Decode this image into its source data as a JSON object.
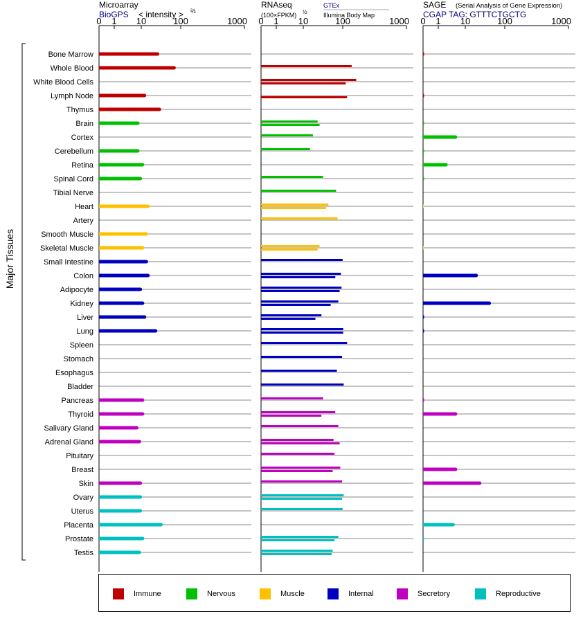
{
  "header": {
    "microarray_title": "Microarray",
    "microarray_source": "BioGPS",
    "microarray_unit_prefix": "< intensity >",
    "microarray_unit_exponent": "⅔",
    "rnaseq_title": "RNAseq",
    "rnaseq_unit": "(100×FPKM)",
    "rnaseq_unit_exponent": "½",
    "rnaseq_source_1": "GTEx",
    "rnaseq_source_2": "Illumina Body Map",
    "sage_title": "SAGE",
    "sage_subtitle": "(Serial Analysis of Gene Expression)",
    "sage_tag": "CGAP TAG: GTTTCTGCTG"
  },
  "y_axis_title": "Major Tissues",
  "colors": {
    "Immune": "#c00000",
    "Nervous": "#00c000",
    "Muscle": "#ffc000",
    "Internal": "#0000c0",
    "Secretory": "#c000c0",
    "Reproductive": "#00c0c0",
    "source_blue": "#000080"
  },
  "legend": [
    "Immune",
    "Nervous",
    "Muscle",
    "Internal",
    "Secretory",
    "Reproductive"
  ],
  "chart_data": [
    {
      "type": "bar",
      "title": "Microarray",
      "subtitle": "BioGPS",
      "xlabel": "< intensity >⅔",
      "xlim": [
        0,
        1000
      ],
      "x_ticks": [
        "0",
        "1",
        "10",
        "100",
        "1000"
      ],
      "categories": [
        "Bone Marrow",
        "Whole Blood",
        "White Blood Cells",
        "Lymph Node",
        "Thymus",
        "Brain",
        "Cortex",
        "Cerebellum",
        "Retina",
        "Spinal Cord",
        "Tibial Nerve",
        "Heart",
        "Artery",
        "Smooth Muscle",
        "Skeletal Muscle",
        "Small Intestine",
        "Colon",
        "Adipocyte",
        "Kidney",
        "Liver",
        "Lung",
        "Spleen",
        "Stomach",
        "Esophagus",
        "Bladder",
        "Pancreas",
        "Thyroid",
        "Salivary Gland",
        "Adrenal Gland",
        "Pituitary",
        "Breast",
        "Skin",
        "Ovary",
        "Uterus",
        "Placenta",
        "Prostate",
        "Testis"
      ],
      "groups": [
        "Immune",
        "Immune",
        "Immune",
        "Immune",
        "Immune",
        "Nervous",
        "Nervous",
        "Nervous",
        "Nervous",
        "Nervous",
        "Nervous",
        "Muscle",
        "Muscle",
        "Muscle",
        "Muscle",
        "Internal",
        "Internal",
        "Internal",
        "Internal",
        "Internal",
        "Internal",
        "Internal",
        "Internal",
        "Internal",
        "Internal",
        "Secretory",
        "Secretory",
        "Secretory",
        "Secretory",
        "Secretory",
        "Secretory",
        "Secretory",
        "Reproductive",
        "Reproductive",
        "Reproductive",
        "Reproductive",
        "Reproductive"
      ],
      "values": [
        10,
        24,
        null,
        5,
        11,
        3.5,
        null,
        3.5,
        4.5,
        4,
        null,
        6,
        null,
        5.5,
        4.5,
        5.5,
        6,
        4,
        4.5,
        5,
        9,
        null,
        null,
        null,
        null,
        4.5,
        4.5,
        3.3,
        3.8,
        null,
        null,
        4,
        4,
        4,
        12,
        4.5,
        3.8
      ]
    },
    {
      "type": "bar",
      "title": "RNAseq",
      "xlabel": "(100×FPKM)½",
      "xlim": [
        0,
        1000
      ],
      "x_ticks": [
        "0",
        "1",
        "10",
        "100",
        "1000"
      ],
      "categories": [
        "Bone Marrow",
        "Whole Blood",
        "White Blood Cells",
        "Lymph Node",
        "Thymus",
        "Brain",
        "Cortex",
        "Cerebellum",
        "Retina",
        "Spinal Cord",
        "Tibial Nerve",
        "Heart",
        "Artery",
        "Smooth Muscle",
        "Skeletal Muscle",
        "Small Intestine",
        "Colon",
        "Adipocyte",
        "Kidney",
        "Liver",
        "Lung",
        "Spleen",
        "Stomach",
        "Esophagus",
        "Bladder",
        "Pancreas",
        "Thyroid",
        "Salivary Gland",
        "Adrenal Gland",
        "Pituitary",
        "Breast",
        "Skin",
        "Ovary",
        "Uterus",
        "Placenta",
        "Prostate",
        "Testis"
      ],
      "series": [
        {
          "name": "GTEx",
          "values": [
            null,
            55,
            70,
            null,
            null,
            9,
            7,
            6,
            null,
            12,
            24,
            16,
            26,
            null,
            10,
            34,
            31,
            32,
            27,
            11,
            35,
            43,
            33,
            25,
            36,
            12,
            23,
            27,
            21,
            22,
            30,
            33,
            36,
            34,
            null,
            27,
            20
          ]
        },
        {
          "name": "Illumina Body Map",
          "values": [
            null,
            null,
            40,
            43,
            null,
            10,
            null,
            null,
            null,
            null,
            null,
            14,
            null,
            null,
            9,
            null,
            23,
            29,
            18,
            8,
            35,
            null,
            null,
            null,
            null,
            null,
            11,
            null,
            29,
            null,
            20,
            null,
            33,
            null,
            null,
            22,
            19
          ]
        }
      ]
    },
    {
      "type": "bar",
      "title": "SAGE",
      "subtitle": "(Serial Analysis of Gene Expression)",
      "xlabel": "CGAP TAG: GTTTCTGCTG",
      "xlim": [
        0,
        1000
      ],
      "x_ticks": [
        "0",
        "1",
        "10",
        "100",
        "1000"
      ],
      "categories": [
        "Bone Marrow",
        "Whole Blood",
        "White Blood Cells",
        "Lymph Node",
        "Thymus",
        "Brain",
        "Cortex",
        "Cerebellum",
        "Retina",
        "Spinal Cord",
        "Tibial Nerve",
        "Heart",
        "Artery",
        "Smooth Muscle",
        "Skeletal Muscle",
        "Small Intestine",
        "Colon",
        "Adipocyte",
        "Kidney",
        "Liver",
        "Lung",
        "Spleen",
        "Stomach",
        "Esophagus",
        "Bladder",
        "Pancreas",
        "Thyroid",
        "Salivary Gland",
        "Adrenal Gland",
        "Pituitary",
        "Breast",
        "Skin",
        "Ovary",
        "Uterus",
        "Placenta",
        "Prostate",
        "Testis"
      ],
      "values": [
        0.1,
        null,
        null,
        0.1,
        null,
        0.1,
        2.5,
        0.1,
        1.5,
        0.1,
        null,
        0.05,
        null,
        null,
        0.05,
        null,
        7.5,
        null,
        15,
        0.1,
        0.1,
        null,
        null,
        null,
        null,
        0.1,
        2.5,
        null,
        null,
        null,
        2.5,
        9,
        null,
        null,
        2.2,
        0.1,
        null
      ]
    }
  ]
}
